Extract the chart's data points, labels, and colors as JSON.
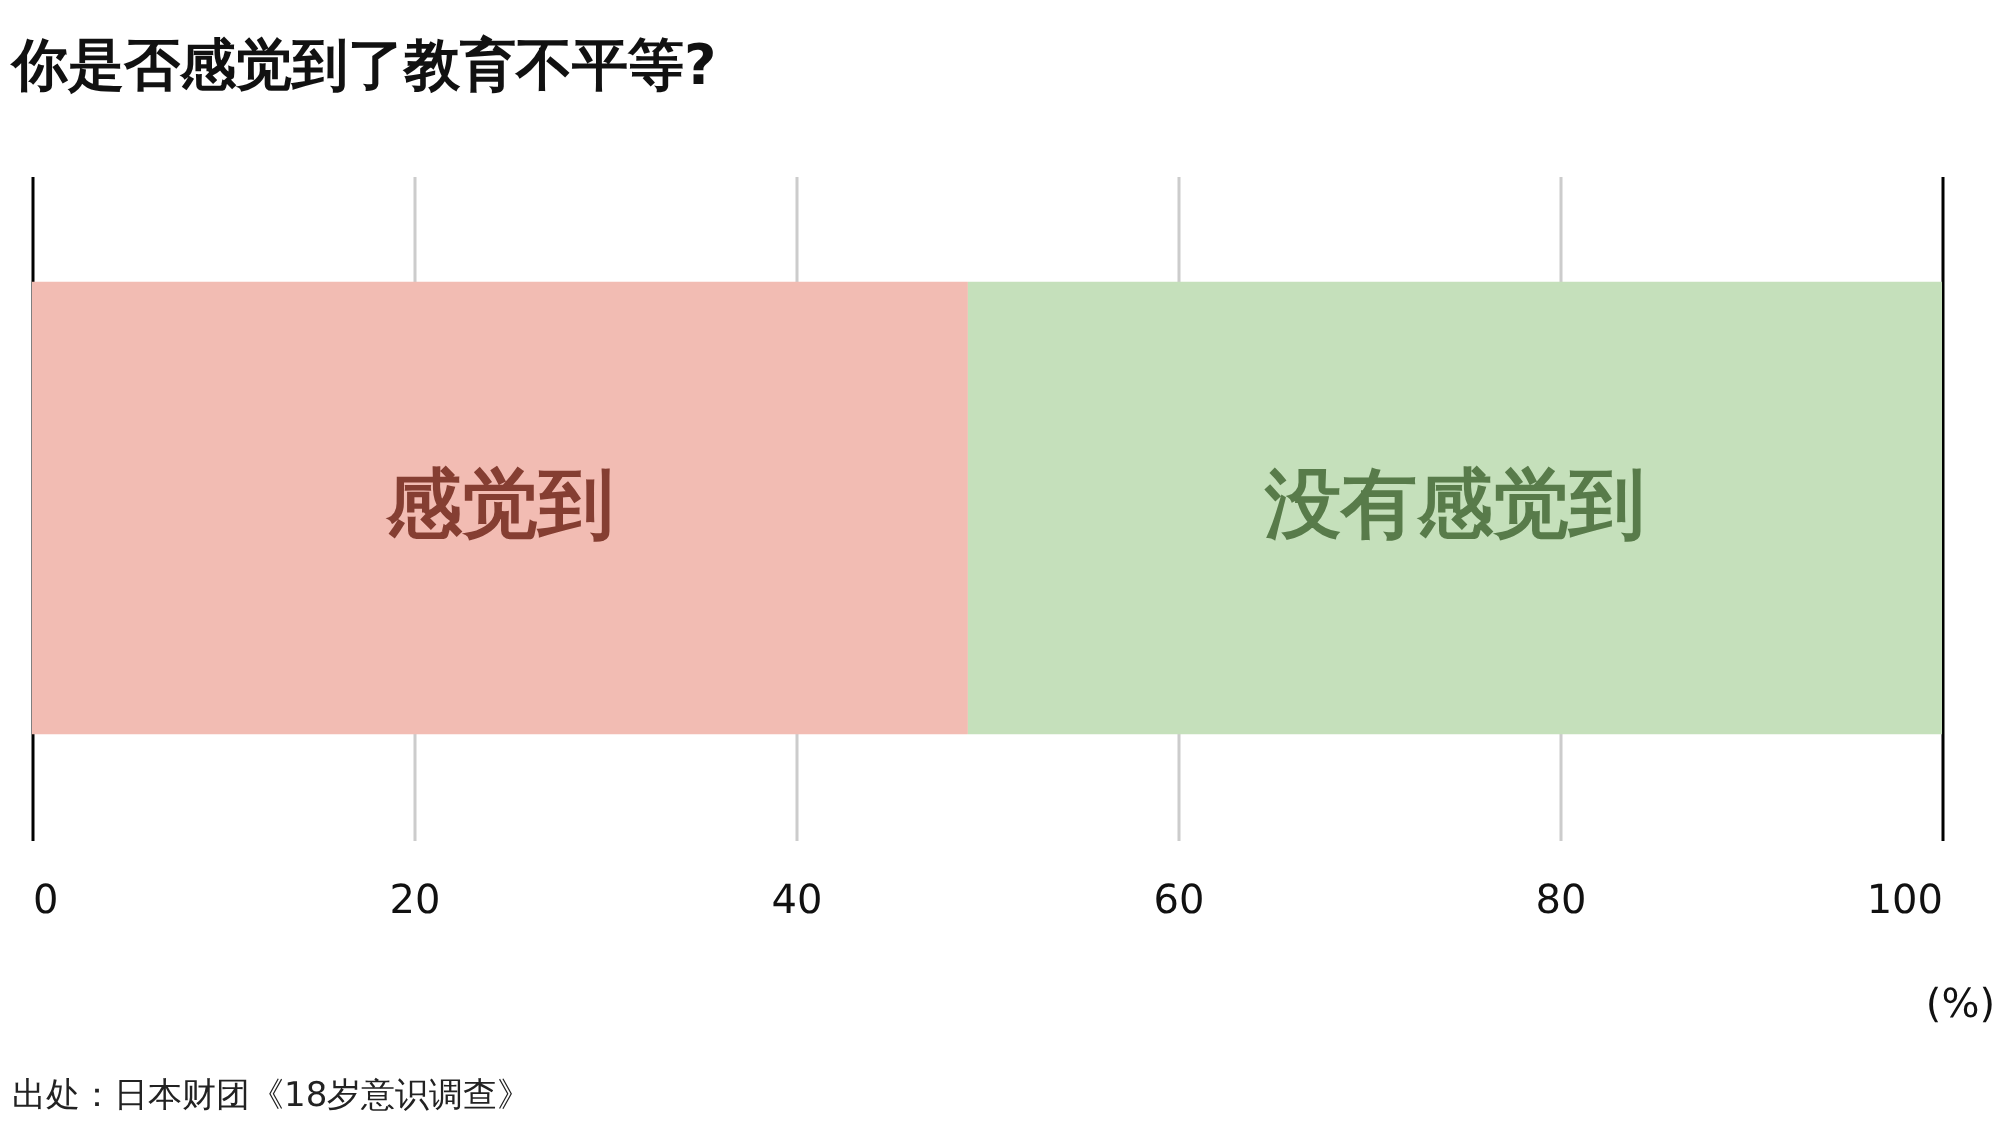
{
  "chart_data": {
    "type": "bar",
    "orientation": "horizontal",
    "stacked": true,
    "title": "你是否感觉到了教育不平等?",
    "categories": [
      null
    ],
    "series": [
      {
        "name": "感觉到",
        "color": "#f2bcb3",
        "values": [
          49
        ]
      },
      {
        "name": "没有感觉到",
        "color": "#c5e0bb",
        "values": [
          51
        ]
      }
    ],
    "xlim": [
      0,
      100
    ],
    "xticks": [
      0,
      20,
      40,
      60,
      80,
      100
    ],
    "xlabel": "(%)",
    "grid": "x",
    "annotations": [
      "出处：日本财团《18岁意识调查》"
    ]
  }
}
